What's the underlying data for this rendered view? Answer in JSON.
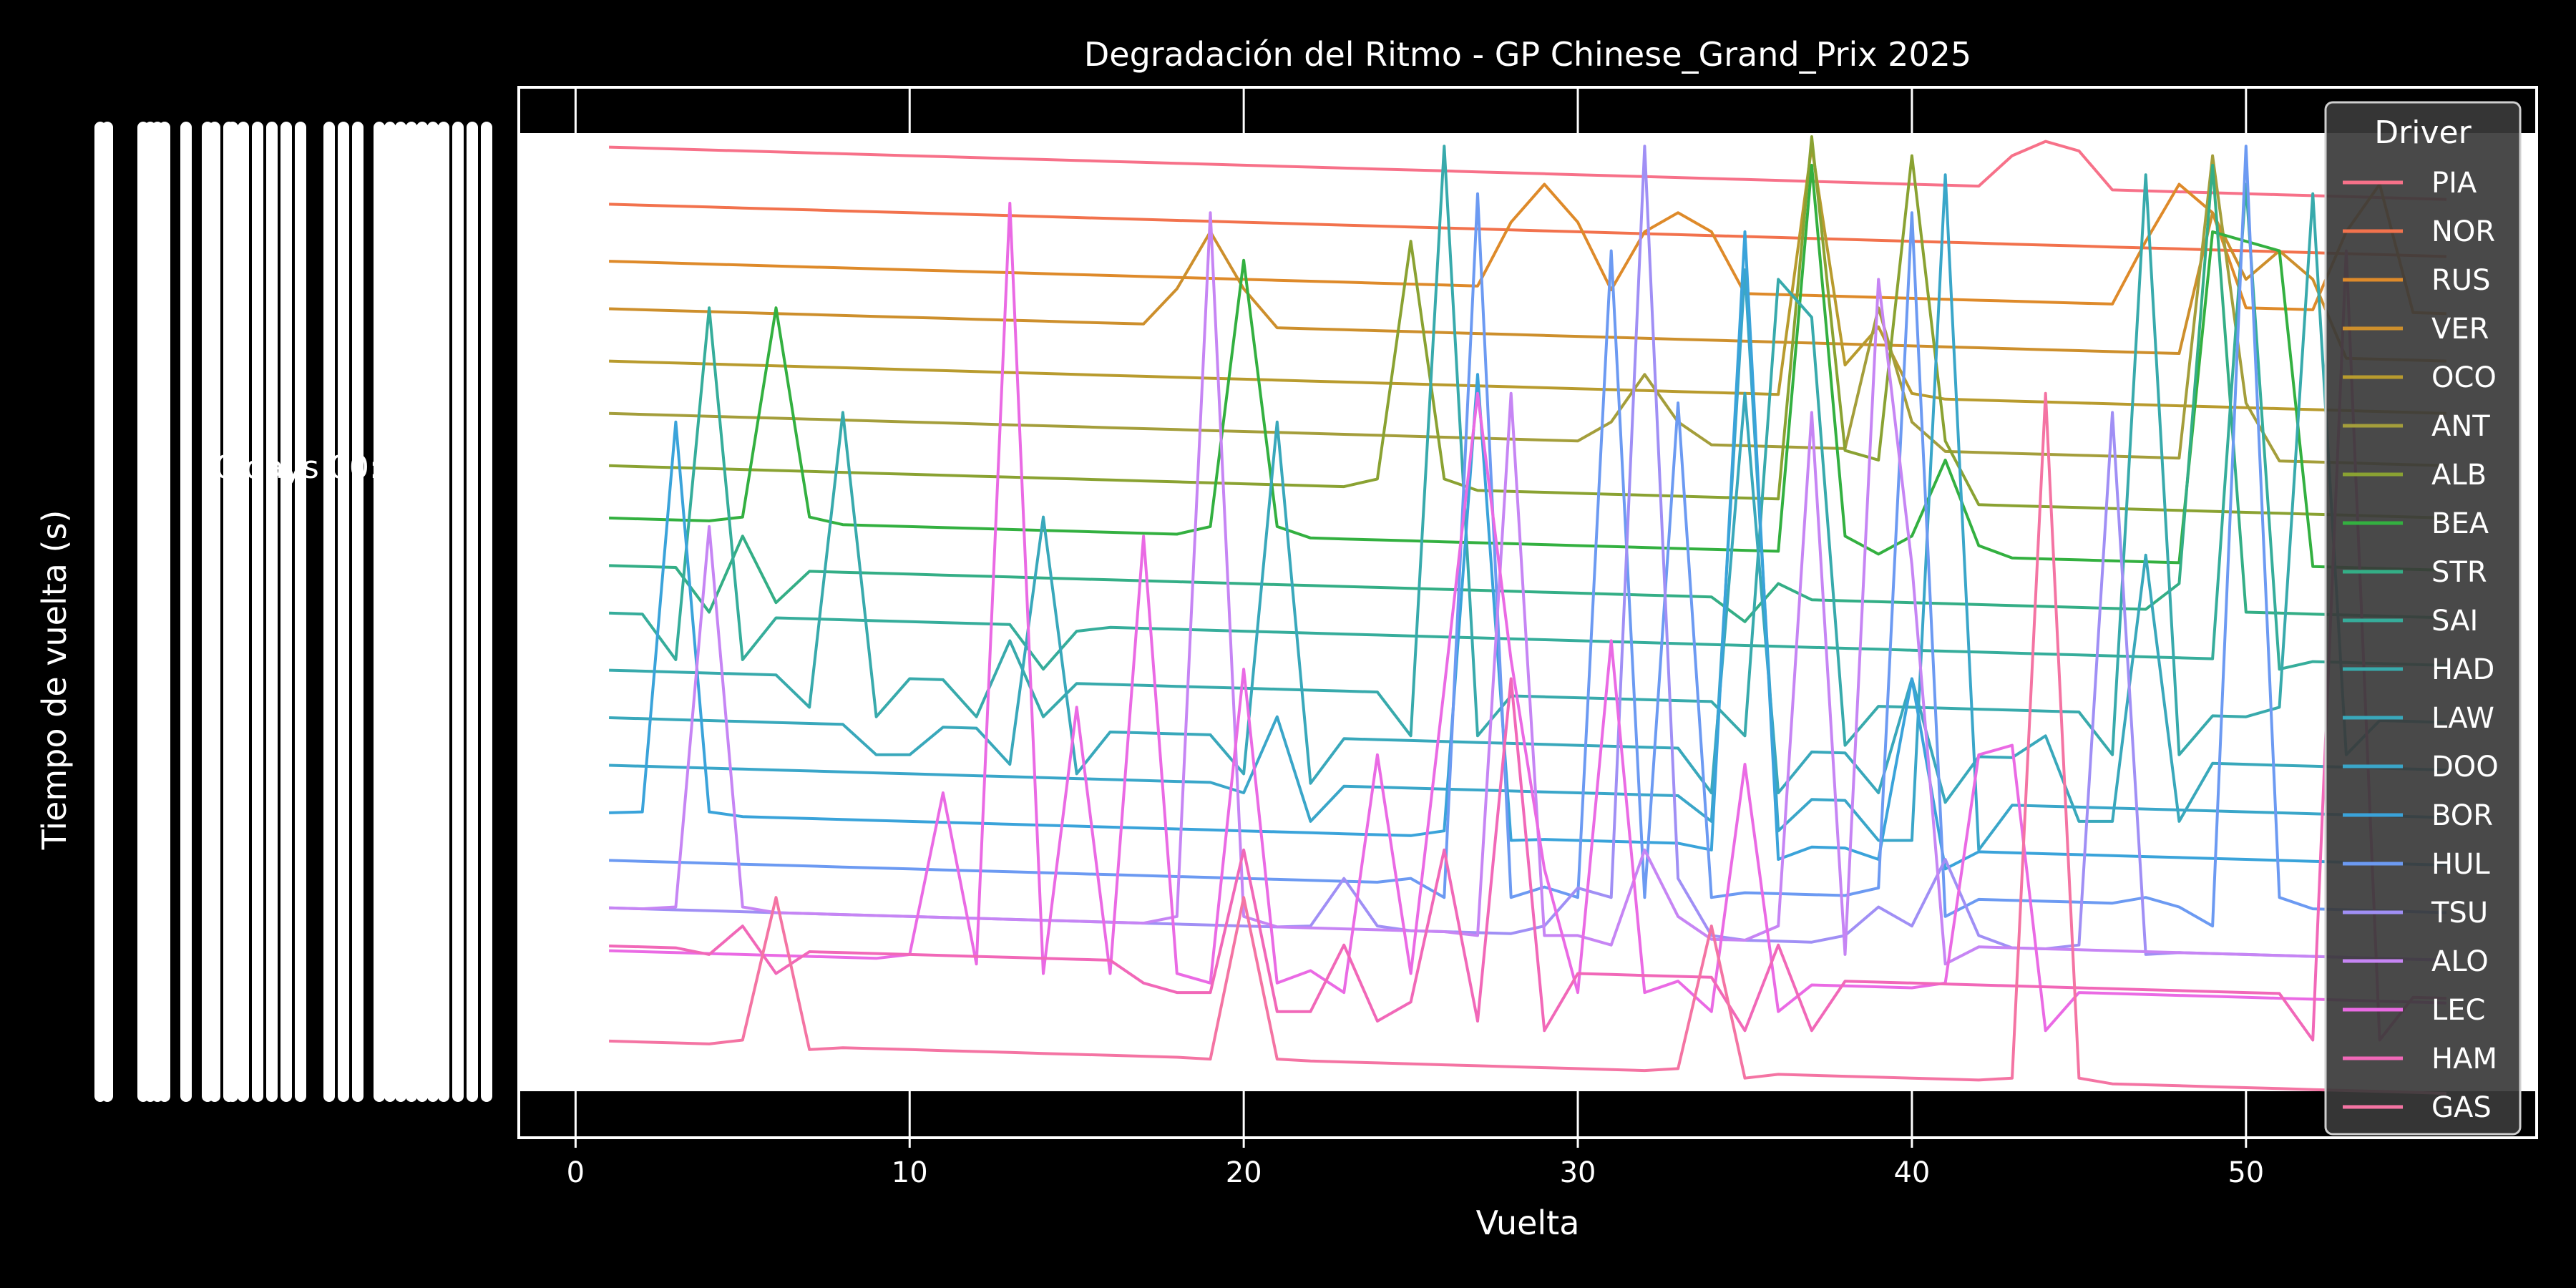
{
  "chart_data": {
    "type": "line",
    "title": "Degradación del Ritmo - GP Chinese_Grand_Prix 2025",
    "xlabel": "Vuelta",
    "ylabel": "Tiempo de vuelta (s)",
    "xlim": [
      -1.7,
      58.7
    ],
    "ylim": [
      0,
      100
    ],
    "x_ticks": [
      0,
      10,
      20,
      30,
      40,
      50
    ],
    "y_tick_note": "Illegible overlapping y tick labels (rendered as a stack of overlapping text)",
    "y_tick_fragment": "0 days 00:01:",
    "grid": true,
    "legend": {
      "title": "Driver",
      "placement": "right"
    },
    "series": [
      {
        "name": "PIA",
        "color": "#f77189",
        "base": 99,
        "slope": -0.1,
        "spikes": [
          [
            43,
            98
          ],
          [
            44,
            99.5
          ],
          [
            45,
            98.5
          ]
        ]
      },
      {
        "name": "NOR",
        "color": "#f2724d",
        "base": 93,
        "slope": -0.1,
        "spikes": []
      },
      {
        "name": "RUS",
        "color": "#de8a2a",
        "base": 87,
        "slope": -0.1,
        "spikes": [
          [
            28,
            91
          ],
          [
            29,
            95
          ],
          [
            30,
            91
          ],
          [
            32,
            90
          ],
          [
            33,
            92
          ],
          [
            34,
            90
          ],
          [
            47,
            89
          ],
          [
            48,
            95
          ],
          [
            49,
            92
          ],
          [
            53,
            90
          ],
          [
            54,
            95
          ]
        ]
      },
      {
        "name": "VER",
        "color": "#cd8f2c",
        "base": 82,
        "slope": -0.1,
        "spikes": [
          [
            18,
            84
          ],
          [
            19,
            90
          ],
          [
            20,
            84
          ],
          [
            49,
            92
          ],
          [
            50,
            85
          ],
          [
            51,
            88
          ],
          [
            52,
            85
          ]
        ]
      },
      {
        "name": "OCO",
        "color": "#b89b2e",
        "base": 76.5,
        "slope": -0.1,
        "spikes": [
          [
            37,
            99
          ],
          [
            38,
            76
          ],
          [
            39,
            80
          ],
          [
            40,
            73
          ]
        ]
      },
      {
        "name": "ANT",
        "color": "#a49e3b",
        "base": 71,
        "slope": -0.1,
        "spikes": [
          [
            31,
            70
          ],
          [
            32,
            75
          ],
          [
            33,
            70
          ],
          [
            39,
            82
          ],
          [
            40,
            70
          ],
          [
            49,
            98
          ],
          [
            50,
            72
          ]
        ]
      },
      {
        "name": "ALB",
        "color": "#8aa232",
        "base": 65.5,
        "slope": -0.1,
        "spikes": [
          [
            24,
            64
          ],
          [
            25,
            89
          ],
          [
            26,
            64
          ],
          [
            37,
            100
          ],
          [
            38,
            67
          ],
          [
            39,
            66
          ],
          [
            40,
            98
          ],
          [
            41,
            68
          ]
        ]
      },
      {
        "name": "BEA",
        "color": "#33b040",
        "base": 60,
        "slope": -0.1,
        "spikes": [
          [
            5,
            60
          ],
          [
            6,
            82
          ],
          [
            7,
            60
          ],
          [
            19,
            59
          ],
          [
            20,
            87
          ],
          [
            21,
            59
          ],
          [
            37,
            97
          ],
          [
            38,
            58
          ],
          [
            40,
            58
          ],
          [
            41,
            66
          ],
          [
            42,
            57
          ],
          [
            49,
            90
          ],
          [
            50,
            89
          ],
          [
            51,
            88
          ]
        ]
      },
      {
        "name": "STR",
        "color": "#34ae86",
        "base": 55,
        "slope": -0.1,
        "spikes": [
          [
            4,
            50
          ],
          [
            5,
            58
          ],
          [
            6,
            51
          ],
          [
            35,
            49
          ],
          [
            36,
            53
          ],
          [
            48,
            53
          ],
          [
            49,
            97
          ],
          [
            50,
            50
          ]
        ]
      },
      {
        "name": "SAI",
        "color": "#36ad9b",
        "base": 50,
        "slope": -0.1,
        "spikes": [
          [
            3,
            45
          ],
          [
            4,
            82
          ],
          [
            5,
            45
          ],
          [
            14,
            44
          ],
          [
            15,
            48
          ],
          [
            50,
            95
          ],
          [
            51,
            44
          ]
        ]
      },
      {
        "name": "HAD",
        "color": "#38aaac",
        "base": 44,
        "slope": -0.1,
        "spikes": [
          [
            7,
            40
          ],
          [
            8,
            71
          ],
          [
            9,
            39
          ],
          [
            12,
            39
          ],
          [
            13,
            47
          ],
          [
            14,
            39
          ],
          [
            25,
            37
          ],
          [
            26,
            99
          ],
          [
            27,
            37
          ],
          [
            35,
            37
          ],
          [
            36,
            85
          ],
          [
            37,
            81
          ],
          [
            38,
            36
          ],
          [
            46,
            35
          ],
          [
            47,
            96
          ],
          [
            48,
            35
          ],
          [
            51,
            40
          ],
          [
            52,
            94
          ],
          [
            53,
            35
          ]
        ]
      },
      {
        "name": "LAW",
        "color": "#39a8bb",
        "base": 39,
        "slope": -0.1,
        "spikes": [
          [
            9,
            35
          ],
          [
            10,
            35
          ],
          [
            13,
            34
          ],
          [
            14,
            60
          ],
          [
            15,
            33
          ],
          [
            20,
            33
          ],
          [
            21,
            70
          ],
          [
            22,
            32
          ],
          [
            34,
            31
          ],
          [
            35,
            73
          ],
          [
            36,
            31
          ],
          [
            39,
            31
          ],
          [
            40,
            43
          ],
          [
            41,
            30
          ],
          [
            44,
            37
          ],
          [
            45,
            28
          ],
          [
            46,
            28
          ],
          [
            47,
            56
          ],
          [
            48,
            28
          ]
        ]
      },
      {
        "name": "DOO",
        "color": "#3aa6c9",
        "base": 34,
        "slope": -0.1,
        "spikes": [
          [
            20,
            31
          ],
          [
            21,
            39
          ],
          [
            22,
            28
          ],
          [
            34,
            28
          ],
          [
            35,
            86
          ],
          [
            36,
            27
          ],
          [
            39,
            26
          ],
          [
            40,
            26
          ],
          [
            41,
            96
          ],
          [
            42,
            25
          ]
        ]
      },
      {
        "name": "BOR",
        "color": "#3aa3da",
        "base": 29,
        "slope": -0.1,
        "spikes": [
          [
            2,
            29
          ],
          [
            3,
            70
          ],
          [
            4,
            29
          ],
          [
            26,
            27
          ],
          [
            27,
            75
          ],
          [
            28,
            26
          ],
          [
            34,
            25
          ],
          [
            35,
            90
          ],
          [
            36,
            24
          ],
          [
            39,
            24
          ],
          [
            40,
            43
          ],
          [
            41,
            23
          ]
        ]
      },
      {
        "name": "HUL",
        "color": "#6c9af2",
        "base": 24,
        "slope": -0.1,
        "spikes": [
          [
            25,
            22
          ],
          [
            26,
            20
          ],
          [
            27,
            94
          ],
          [
            28,
            20
          ],
          [
            30,
            20
          ],
          [
            31,
            88
          ],
          [
            32,
            20
          ],
          [
            33,
            72
          ],
          [
            34,
            20
          ],
          [
            39,
            21
          ],
          [
            40,
            92
          ],
          [
            41,
            18
          ],
          [
            47,
            20
          ],
          [
            48,
            19
          ],
          [
            49,
            17
          ],
          [
            50,
            99
          ],
          [
            51,
            20
          ]
        ]
      },
      {
        "name": "TSU",
        "color": "#a08ff5",
        "base": 19,
        "slope": -0.1,
        "spikes": [
          [
            22,
            17
          ],
          [
            23,
            22
          ],
          [
            24,
            17
          ],
          [
            29,
            17
          ],
          [
            30,
            21
          ],
          [
            31,
            20
          ],
          [
            32,
            99
          ],
          [
            33,
            22
          ],
          [
            34,
            16
          ],
          [
            38,
            16
          ],
          [
            39,
            19
          ],
          [
            40,
            17
          ],
          [
            41,
            24
          ],
          [
            42,
            16
          ],
          [
            45,
            15
          ],
          [
            46,
            71
          ],
          [
            47,
            14
          ]
        ]
      },
      {
        "name": "ALO",
        "color": "#c685f4",
        "base": 19,
        "slope": -0.1,
        "spikes": [
          [
            3,
            19
          ],
          [
            4,
            59
          ],
          [
            5,
            19
          ],
          [
            18,
            18
          ],
          [
            19,
            92
          ],
          [
            20,
            18
          ],
          [
            27,
            16
          ],
          [
            28,
            73
          ],
          [
            29,
            16
          ],
          [
            31,
            15
          ],
          [
            32,
            25
          ],
          [
            33,
            18
          ],
          [
            36,
            17
          ],
          [
            37,
            71
          ],
          [
            38,
            14
          ],
          [
            39,
            85
          ],
          [
            40,
            55
          ],
          [
            41,
            13
          ]
        ]
      },
      {
        "name": "LEC",
        "color": "#ea6ae4",
        "base": 14.5,
        "slope": -0.1,
        "spikes": [
          [
            10,
            14
          ],
          [
            11,
            31
          ],
          [
            12,
            13
          ],
          [
            13,
            93
          ],
          [
            14,
            12
          ],
          [
            15,
            40
          ],
          [
            16,
            12
          ],
          [
            17,
            58
          ],
          [
            18,
            12
          ],
          [
            19,
            11
          ],
          [
            20,
            44
          ],
          [
            21,
            11
          ],
          [
            23,
            10
          ],
          [
            24,
            35
          ],
          [
            25,
            12
          ],
          [
            26,
            42
          ],
          [
            27,
            73
          ],
          [
            28,
            45
          ],
          [
            29,
            23
          ],
          [
            30,
            10
          ],
          [
            31,
            47
          ],
          [
            32,
            10
          ],
          [
            34,
            8
          ],
          [
            35,
            34
          ],
          [
            36,
            8
          ],
          [
            41,
            11
          ],
          [
            42,
            35
          ],
          [
            43,
            36
          ],
          [
            44,
            6
          ]
        ]
      },
      {
        "name": "HAM",
        "color": "#f168b8",
        "base": 15,
        "slope": -0.1,
        "spikes": [
          [
            4,
            14
          ],
          [
            5,
            17
          ],
          [
            6,
            12
          ],
          [
            17,
            11
          ],
          [
            18,
            10
          ],
          [
            19,
            10
          ],
          [
            20,
            25
          ],
          [
            21,
            8
          ],
          [
            22,
            8
          ],
          [
            23,
            15
          ],
          [
            24,
            7
          ],
          [
            25,
            9
          ],
          [
            26,
            25
          ],
          [
            27,
            7
          ],
          [
            28,
            43
          ],
          [
            29,
            6
          ],
          [
            35,
            6
          ],
          [
            36,
            15
          ],
          [
            37,
            6
          ],
          [
            52,
            5
          ],
          [
            53,
            88
          ],
          [
            54,
            5
          ]
        ]
      },
      {
        "name": "GAS",
        "color": "#f474a3",
        "base": 5,
        "slope": -0.1,
        "spikes": [
          [
            5,
            5
          ],
          [
            6,
            20
          ],
          [
            7,
            4
          ],
          [
            19,
            3
          ],
          [
            20,
            20
          ],
          [
            21,
            3
          ],
          [
            33,
            2
          ],
          [
            34,
            17
          ],
          [
            35,
            1
          ],
          [
            43,
            1
          ],
          [
            44,
            73
          ],
          [
            45,
            1
          ]
        ]
      }
    ]
  }
}
